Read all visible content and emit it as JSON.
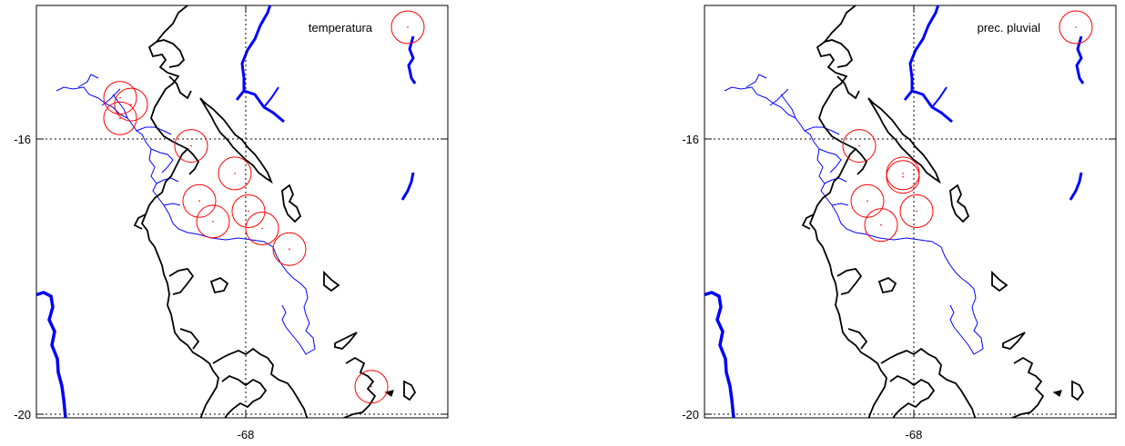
{
  "panels": [
    {
      "id": "left",
      "legend": "temperatura",
      "y_ticks": [
        "-16",
        "-20"
      ],
      "x_ticks": [
        "-68"
      ],
      "marker_color": "#ff0000",
      "stations": [
        {
          "lon": -70.3,
          "lat": -15.4
        },
        {
          "lon": -70.1,
          "lat": -15.5
        },
        {
          "lon": -70.3,
          "lat": -15.7
        },
        {
          "lon": -69.0,
          "lat": -16.1
        },
        {
          "lon": -68.2,
          "lat": -16.5
        },
        {
          "lon": -68.85,
          "lat": -16.9
        },
        {
          "lon": -68.6,
          "lat": -17.2
        },
        {
          "lon": -67.95,
          "lat": -17.05
        },
        {
          "lon": -67.7,
          "lat": -17.3
        },
        {
          "lon": -67.2,
          "lat": -17.6
        },
        {
          "lon": -65.7,
          "lat": -19.6
        }
      ]
    },
    {
      "id": "right",
      "legend": "prec. pluvial",
      "y_ticks": [
        "-16",
        "-20"
      ],
      "x_ticks": [
        "-68"
      ],
      "marker_color": "#ff0000",
      "stations": [
        {
          "lon": -69.0,
          "lat": -16.1
        },
        {
          "lon": -68.2,
          "lat": -16.5
        },
        {
          "lon": -68.2,
          "lat": -16.55
        },
        {
          "lon": -68.85,
          "lat": -16.9
        },
        {
          "lon": -68.6,
          "lat": -17.25
        },
        {
          "lon": -67.95,
          "lat": -17.05
        }
      ]
    }
  ],
  "colors": {
    "rivers": "#0000ff",
    "borders": "#000000",
    "markers": "#ff0000"
  }
}
